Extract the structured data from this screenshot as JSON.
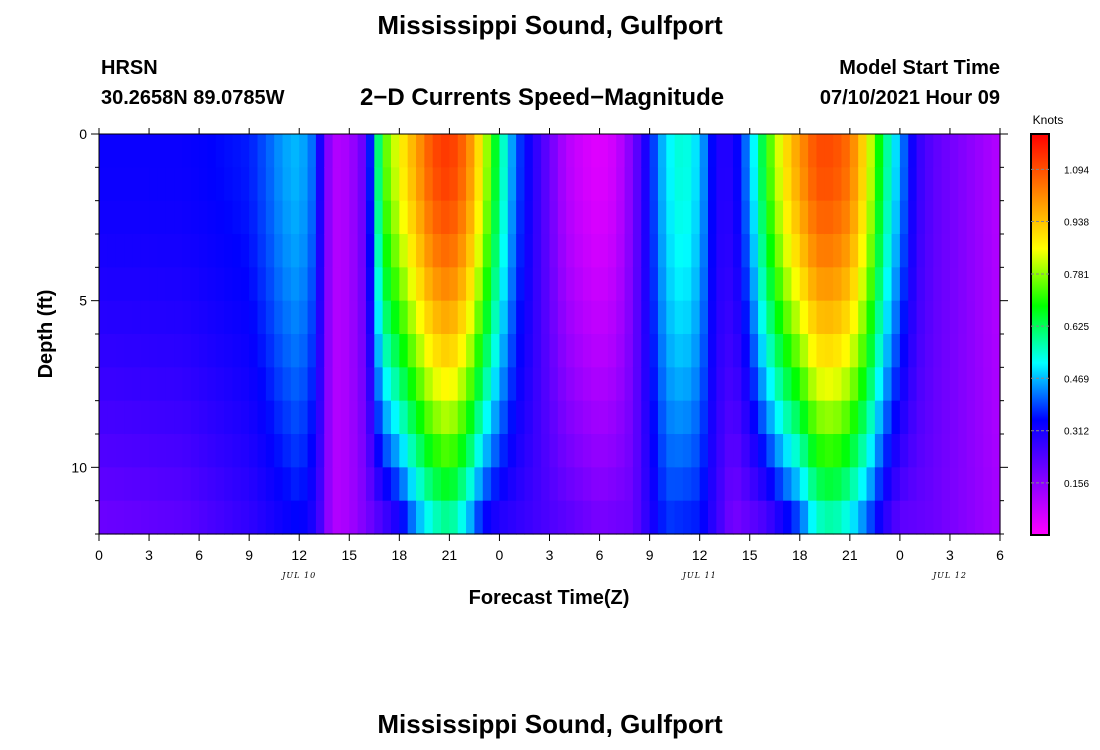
{
  "page": {
    "title_top": "Mississippi Sound, Gulfport",
    "title_bottom": "Mississippi Sound, Gulfport",
    "station_id": "HRSN",
    "coordinates": "30.2658N  89.0785W",
    "subtitle": "2−D Currents Speed−Magnitude",
    "model_start_label": "Model Start Time",
    "model_start_time": "07/10/2021 Hour 09"
  },
  "chart_data": {
    "type": "heatmap",
    "title": "2−D Currents Speed−Magnitude",
    "xlabel": "Forecast Time(Z)",
    "ylabel": "Depth (ft)",
    "x_range_hours": [
      0,
      54
    ],
    "y_range_ft": [
      0,
      12
    ],
    "y_inverted": true,
    "x_tick_labels": [
      "0",
      "3",
      "6",
      "9",
      "12",
      "15",
      "18",
      "21",
      "0",
      "3",
      "6",
      "9",
      "12",
      "15",
      "18",
      "21",
      "0",
      "3",
      "6"
    ],
    "y_tick_values": [
      0,
      5,
      10
    ],
    "y_tick_labels": [
      "0",
      "5",
      "10"
    ],
    "date_labels": [
      {
        "text": "JUL 10",
        "hour": 12
      },
      {
        "text": "JUL 11",
        "hour": 36
      },
      {
        "text": "JUL 12",
        "hour": 51
      }
    ],
    "colorbar": {
      "title": "Knots",
      "min": 0.0,
      "max": 1.2,
      "tick_values": [
        0.156,
        0.312,
        0.469,
        0.625,
        0.781,
        0.938,
        1.094
      ],
      "tick_labels": [
        "0.156",
        "0.312",
        "0.469",
        "0.625",
        "0.781",
        "0.938",
        "1.094"
      ],
      "colors": [
        "#ff00ff",
        "#8000ff",
        "#0000ff",
        "#00ffff",
        "#00ff00",
        "#ffff00",
        "#ff8000",
        "#ff0000"
      ]
    },
    "depth_levels_ft": [
      0.5,
      1.5,
      2.5,
      3.5,
      4.5,
      5.5,
      6.5,
      7.5,
      8.5,
      9.5,
      10.5,
      11.5
    ],
    "surface_speed_by_hour": [
      {
        "hour": 0,
        "speed": 0.33
      },
      {
        "hour": 5,
        "speed": 0.33
      },
      {
        "hour": 9,
        "speed": 0.36
      },
      {
        "hour": 10,
        "speed": 0.4
      },
      {
        "hour": 11,
        "speed": 0.45
      },
      {
        "hour": 12,
        "speed": 0.47
      },
      {
        "hour": 13,
        "speed": 0.4
      },
      {
        "hour": 13.5,
        "speed": 0.22
      },
      {
        "hour": 14,
        "speed": 0.1
      },
      {
        "hour": 15,
        "speed": 0.12
      },
      {
        "hour": 16,
        "speed": 0.22
      },
      {
        "hour": 16.5,
        "speed": 0.5
      },
      {
        "hour": 17,
        "speed": 0.72
      },
      {
        "hour": 18,
        "speed": 0.86
      },
      {
        "hour": 19,
        "speed": 0.98
      },
      {
        "hour": 20,
        "speed": 1.1
      },
      {
        "hour": 21,
        "speed": 1.13
      },
      {
        "hour": 22,
        "speed": 1.05
      },
      {
        "hour": 23,
        "speed": 0.85
      },
      {
        "hour": 24,
        "speed": 0.6
      },
      {
        "hour": 25,
        "speed": 0.4
      },
      {
        "hour": 26,
        "speed": 0.3
      },
      {
        "hour": 27,
        "speed": 0.2
      },
      {
        "hour": 28,
        "speed": 0.1
      },
      {
        "hour": 29,
        "speed": 0.06
      },
      {
        "hour": 30,
        "speed": 0.04
      },
      {
        "hour": 31,
        "speed": 0.07
      },
      {
        "hour": 32,
        "speed": 0.18
      },
      {
        "hour": 33,
        "speed": 0.35
      },
      {
        "hour": 34,
        "speed": 0.5
      },
      {
        "hour": 35,
        "speed": 0.55
      },
      {
        "hour": 36,
        "speed": 0.48
      },
      {
        "hour": 37,
        "speed": 0.3
      },
      {
        "hour": 38,
        "speed": 0.3
      },
      {
        "hour": 39,
        "speed": 0.45
      },
      {
        "hour": 40,
        "speed": 0.7
      },
      {
        "hour": 41,
        "speed": 0.88
      },
      {
        "hour": 42,
        "speed": 1.0
      },
      {
        "hour": 43,
        "speed": 1.1
      },
      {
        "hour": 44,
        "speed": 1.1
      },
      {
        "hour": 45,
        "speed": 1.05
      },
      {
        "hour": 46,
        "speed": 0.88
      },
      {
        "hour": 47,
        "speed": 0.62
      },
      {
        "hour": 48,
        "speed": 0.45
      },
      {
        "hour": 49,
        "speed": 0.28
      },
      {
        "hour": 50,
        "speed": 0.22
      },
      {
        "hour": 52,
        "speed": 0.16
      },
      {
        "hour": 54,
        "speed": 0.1
      }
    ],
    "bottom_speed_by_hour": [
      {
        "hour": 0,
        "speed": 0.2
      },
      {
        "hour": 5,
        "speed": 0.22
      },
      {
        "hour": 9,
        "speed": 0.28
      },
      {
        "hour": 12,
        "speed": 0.35
      },
      {
        "hour": 13,
        "speed": 0.3
      },
      {
        "hour": 14,
        "speed": 0.1
      },
      {
        "hour": 15,
        "speed": 0.12
      },
      {
        "hour": 16,
        "speed": 0.18
      },
      {
        "hour": 18,
        "speed": 0.32
      },
      {
        "hour": 19,
        "speed": 0.45
      },
      {
        "hour": 20,
        "speed": 0.55
      },
      {
        "hour": 21,
        "speed": 0.6
      },
      {
        "hour": 22,
        "speed": 0.5
      },
      {
        "hour": 23,
        "speed": 0.35
      },
      {
        "hour": 24,
        "speed": 0.3
      },
      {
        "hour": 25,
        "speed": 0.28
      },
      {
        "hour": 28,
        "speed": 0.22
      },
      {
        "hour": 30,
        "speed": 0.18
      },
      {
        "hour": 32,
        "speed": 0.2
      },
      {
        "hour": 33,
        "speed": 0.3
      },
      {
        "hour": 34,
        "speed": 0.38
      },
      {
        "hour": 36,
        "speed": 0.36
      },
      {
        "hour": 38,
        "speed": 0.18
      },
      {
        "hour": 40,
        "speed": 0.25
      },
      {
        "hour": 42,
        "speed": 0.4
      },
      {
        "hour": 43,
        "speed": 0.55
      },
      {
        "hour": 44,
        "speed": 0.58
      },
      {
        "hour": 45,
        "speed": 0.52
      },
      {
        "hour": 46,
        "speed": 0.42
      },
      {
        "hour": 47,
        "speed": 0.3
      },
      {
        "hour": 48,
        "speed": 0.22
      },
      {
        "hour": 50,
        "speed": 0.2
      },
      {
        "hour": 52,
        "speed": 0.16
      },
      {
        "hour": 54,
        "speed": 0.12
      }
    ]
  }
}
